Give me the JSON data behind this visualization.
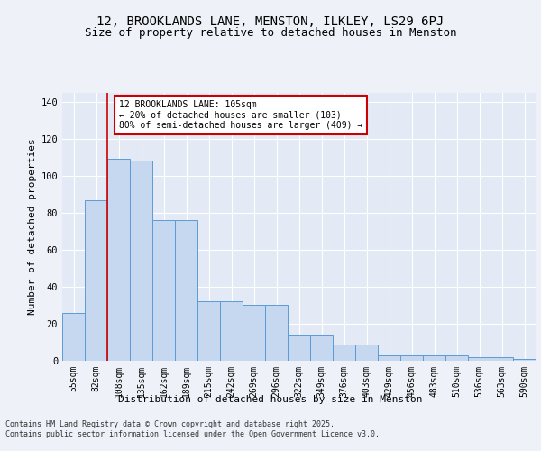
{
  "title": "12, BROOKLANDS LANE, MENSTON, ILKLEY, LS29 6PJ",
  "subtitle": "Size of property relative to detached houses in Menston",
  "xlabel": "Distribution of detached houses by size in Menston",
  "ylabel": "Number of detached properties",
  "bar_color": "#c5d8f0",
  "bar_edge_color": "#5b9bd5",
  "categories": [
    "55sqm",
    "82sqm",
    "108sqm",
    "135sqm",
    "162sqm",
    "189sqm",
    "215sqm",
    "242sqm",
    "269sqm",
    "296sqm",
    "322sqm",
    "349sqm",
    "376sqm",
    "403sqm",
    "429sqm",
    "456sqm",
    "483sqm",
    "510sqm",
    "536sqm",
    "563sqm",
    "590sqm"
  ],
  "values": [
    26,
    87,
    109,
    108,
    76,
    76,
    32,
    32,
    30,
    30,
    14,
    14,
    9,
    9,
    3,
    3,
    3,
    3,
    2,
    2,
    1
  ],
  "vline_index": 1.5,
  "vline_color": "#cc0000",
  "annotation_text": "12 BROOKLANDS LANE: 105sqm\n← 20% of detached houses are smaller (103)\n80% of semi-detached houses are larger (409) →",
  "annotation_box_color": "#ffffff",
  "annotation_box_edge": "#cc0000",
  "footer_text": "Contains HM Land Registry data © Crown copyright and database right 2025.\nContains public sector information licensed under the Open Government Licence v3.0.",
  "ylim": [
    0,
    145
  ],
  "yticks": [
    0,
    20,
    40,
    60,
    80,
    100,
    120,
    140
  ],
  "background_color": "#eef2f8",
  "plot_bg_color": "#e4eaf5",
  "grid_color": "#ffffff",
  "title_fontsize": 10,
  "subtitle_fontsize": 9,
  "axis_label_fontsize": 8,
  "tick_fontsize": 7,
  "annotation_fontsize": 7,
  "footer_fontsize": 6
}
